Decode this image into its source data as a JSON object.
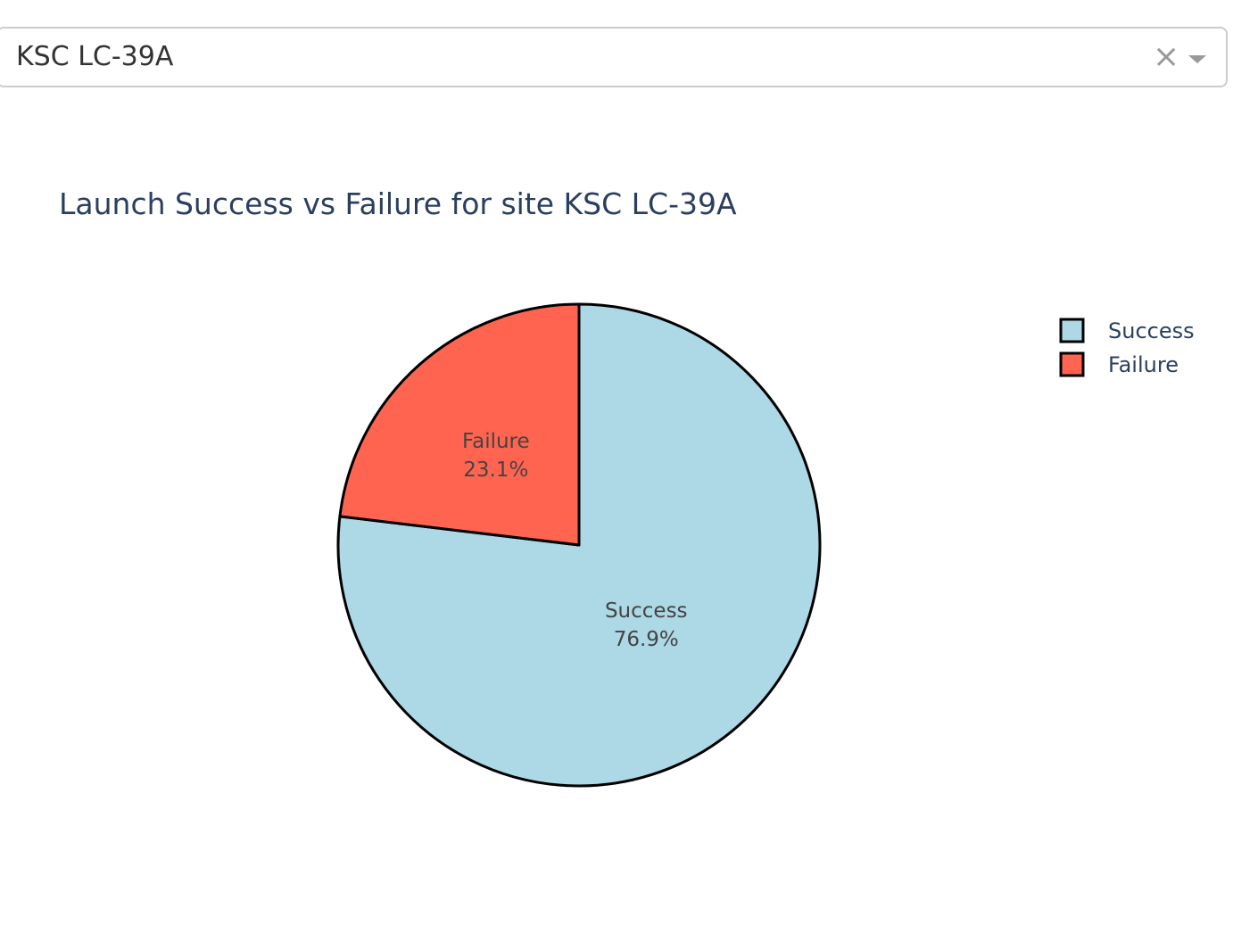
{
  "dropdown": {
    "selected": "KSC LC-39A",
    "clear_icon": "close-icon",
    "arrow_icon": "chevron-down-icon"
  },
  "chart_data": {
    "type": "pie",
    "title": "Launch Success vs Failure for site KSC LC-39A",
    "labels": [
      "Success",
      "Failure"
    ],
    "values": [
      76.9,
      23.1
    ],
    "percent_labels": [
      "76.9%",
      "23.1%"
    ],
    "colors": [
      "#add8e6",
      "#ff6450"
    ],
    "line_color": "#000000",
    "legend": {
      "placement": "top-right",
      "entries": [
        "Success",
        "Failure"
      ]
    }
  }
}
